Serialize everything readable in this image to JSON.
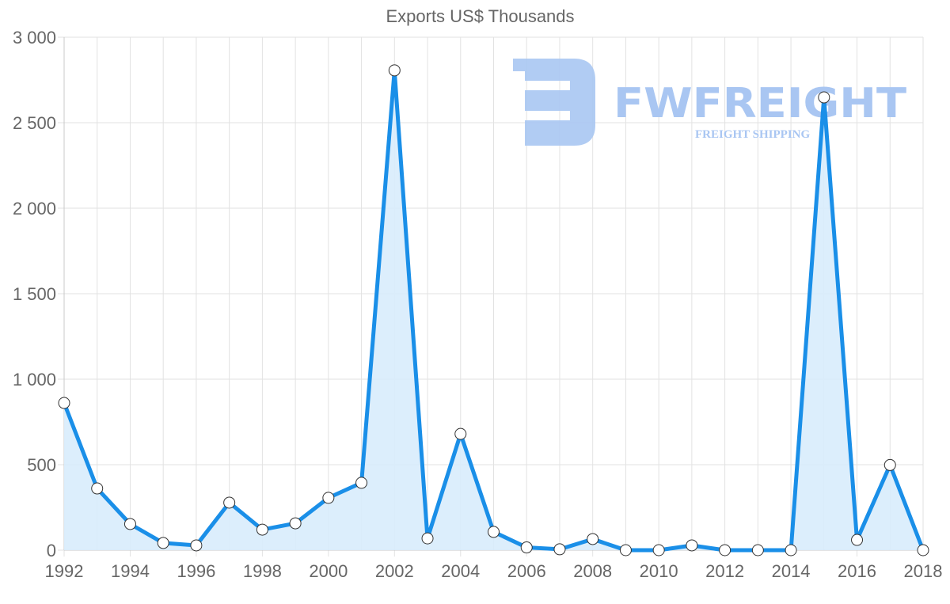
{
  "chart_data": {
    "type": "line",
    "title": "Exports US$ Thousands",
    "xlabel": "",
    "ylabel": "",
    "x": [
      1992,
      1993,
      1994,
      1995,
      1996,
      1997,
      1998,
      1999,
      2000,
      2001,
      2002,
      2003,
      2004,
      2005,
      2006,
      2007,
      2008,
      2009,
      2010,
      2011,
      2012,
      2013,
      2014,
      2015,
      2016,
      2017,
      2018
    ],
    "series": [
      {
        "name": "Exports US$ Thousands",
        "values": [
          861,
          361,
          153,
          42,
          28,
          278,
          120,
          157,
          306,
          394,
          2806,
          69,
          680,
          107,
          16,
          5,
          65,
          0,
          0,
          28,
          0,
          0,
          0,
          2648,
          60,
          498,
          0
        ]
      }
    ],
    "x_tick_labels": [
      "1992",
      "1994",
      "1996",
      "1998",
      "2000",
      "2002",
      "2004",
      "2006",
      "2008",
      "2010",
      "2012",
      "2014",
      "2016",
      "2018"
    ],
    "y_tick_labels": [
      "0",
      "500",
      "1 000",
      "1 500",
      "2 000",
      "2 500",
      "3 000"
    ],
    "y_ticks": [
      0,
      500,
      1000,
      1500,
      2000,
      2500,
      3000
    ],
    "xlim": [
      1992,
      2018
    ],
    "ylim": [
      0,
      3000
    ],
    "grid": true,
    "legend": "none",
    "filled_area": true,
    "colors": {
      "line": "#1a8fe8",
      "fill": "#d8ecfc",
      "grid": "#e2e2e2",
      "text": "#666666",
      "marker_fill": "#ffffff",
      "marker_stroke": "#333333"
    }
  },
  "watermark": {
    "brand": "FWFREIGHT",
    "tagline": "FREIGHT SHIPPING"
  }
}
